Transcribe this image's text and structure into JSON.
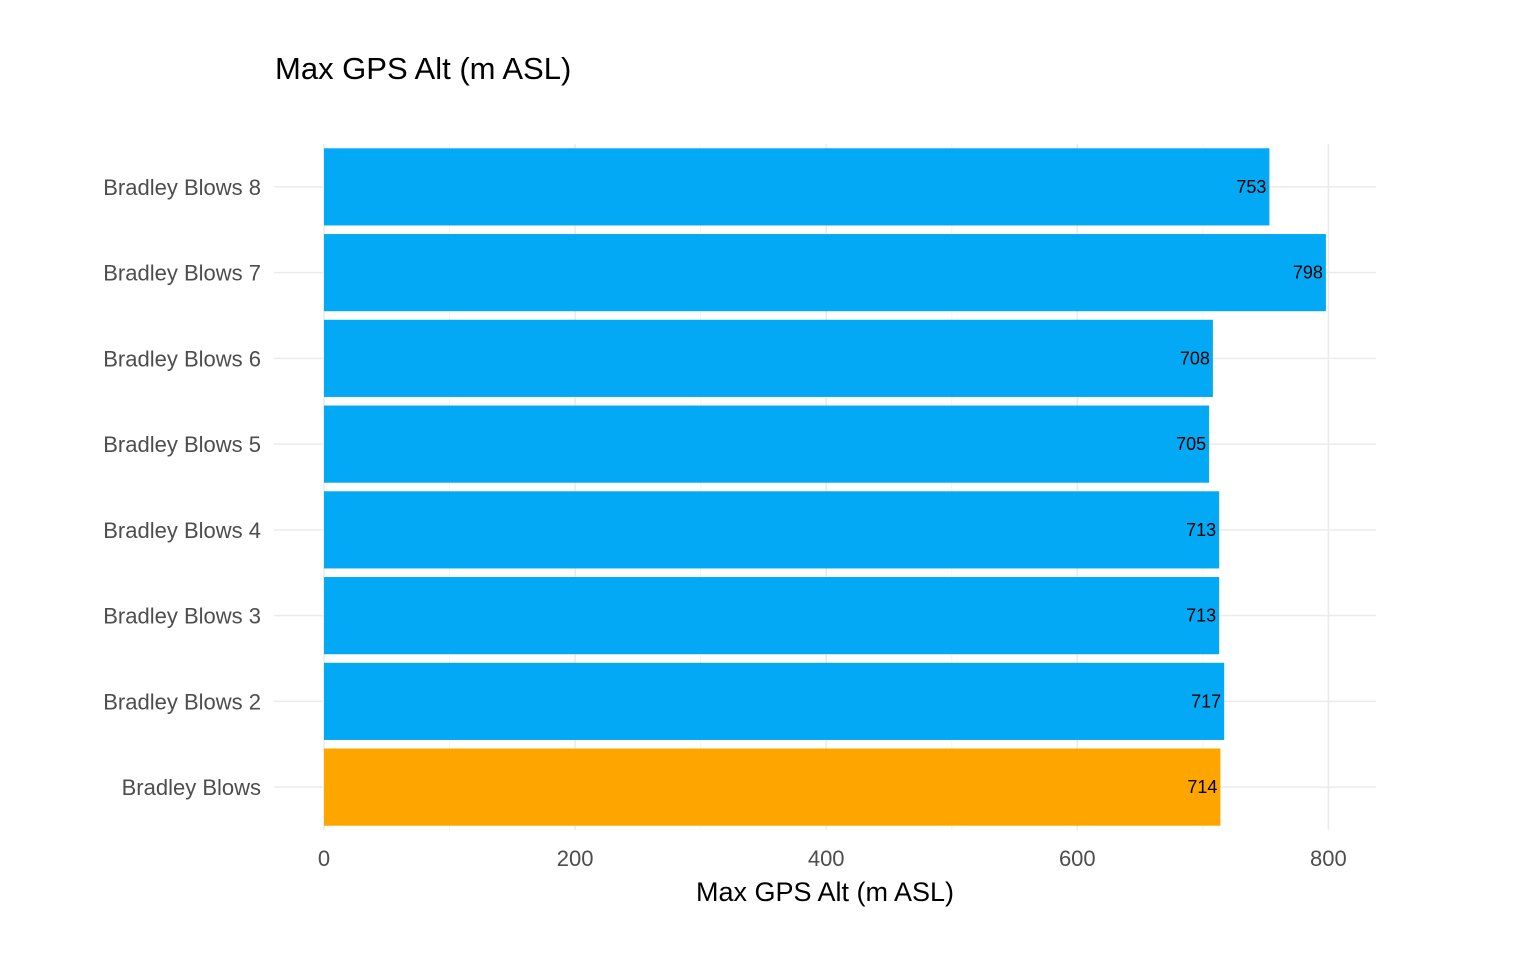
{
  "chart_data": {
    "type": "bar",
    "orientation": "horizontal",
    "title": "Max GPS Alt (m ASL)",
    "xlabel": "Max GPS Alt (m ASL)",
    "ylabel": "",
    "categories": [
      "Bradley Blows",
      "Bradley Blows 2",
      "Bradley Blows 3",
      "Bradley Blows 4",
      "Bradley Blows 5",
      "Bradley Blows 6",
      "Bradley Blows 7",
      "Bradley Blows 8"
    ],
    "values": [
      714,
      717,
      713,
      713,
      705,
      708,
      798,
      753
    ],
    "data_labels": [
      "714",
      "717",
      "713",
      "713",
      "705",
      "708",
      "798",
      "753"
    ],
    "bar_colors": [
      "#FFA500",
      "#03A9F4",
      "#03A9F4",
      "#03A9F4",
      "#03A9F4",
      "#03A9F4",
      "#03A9F4",
      "#03A9F4"
    ],
    "xlim": [
      0,
      838
    ],
    "x_ticks": [
      0,
      200,
      400,
      600,
      800
    ],
    "x_tick_labels": [
      "0",
      "200",
      "400",
      "600",
      "800"
    ],
    "grid": true,
    "legend": "none"
  }
}
